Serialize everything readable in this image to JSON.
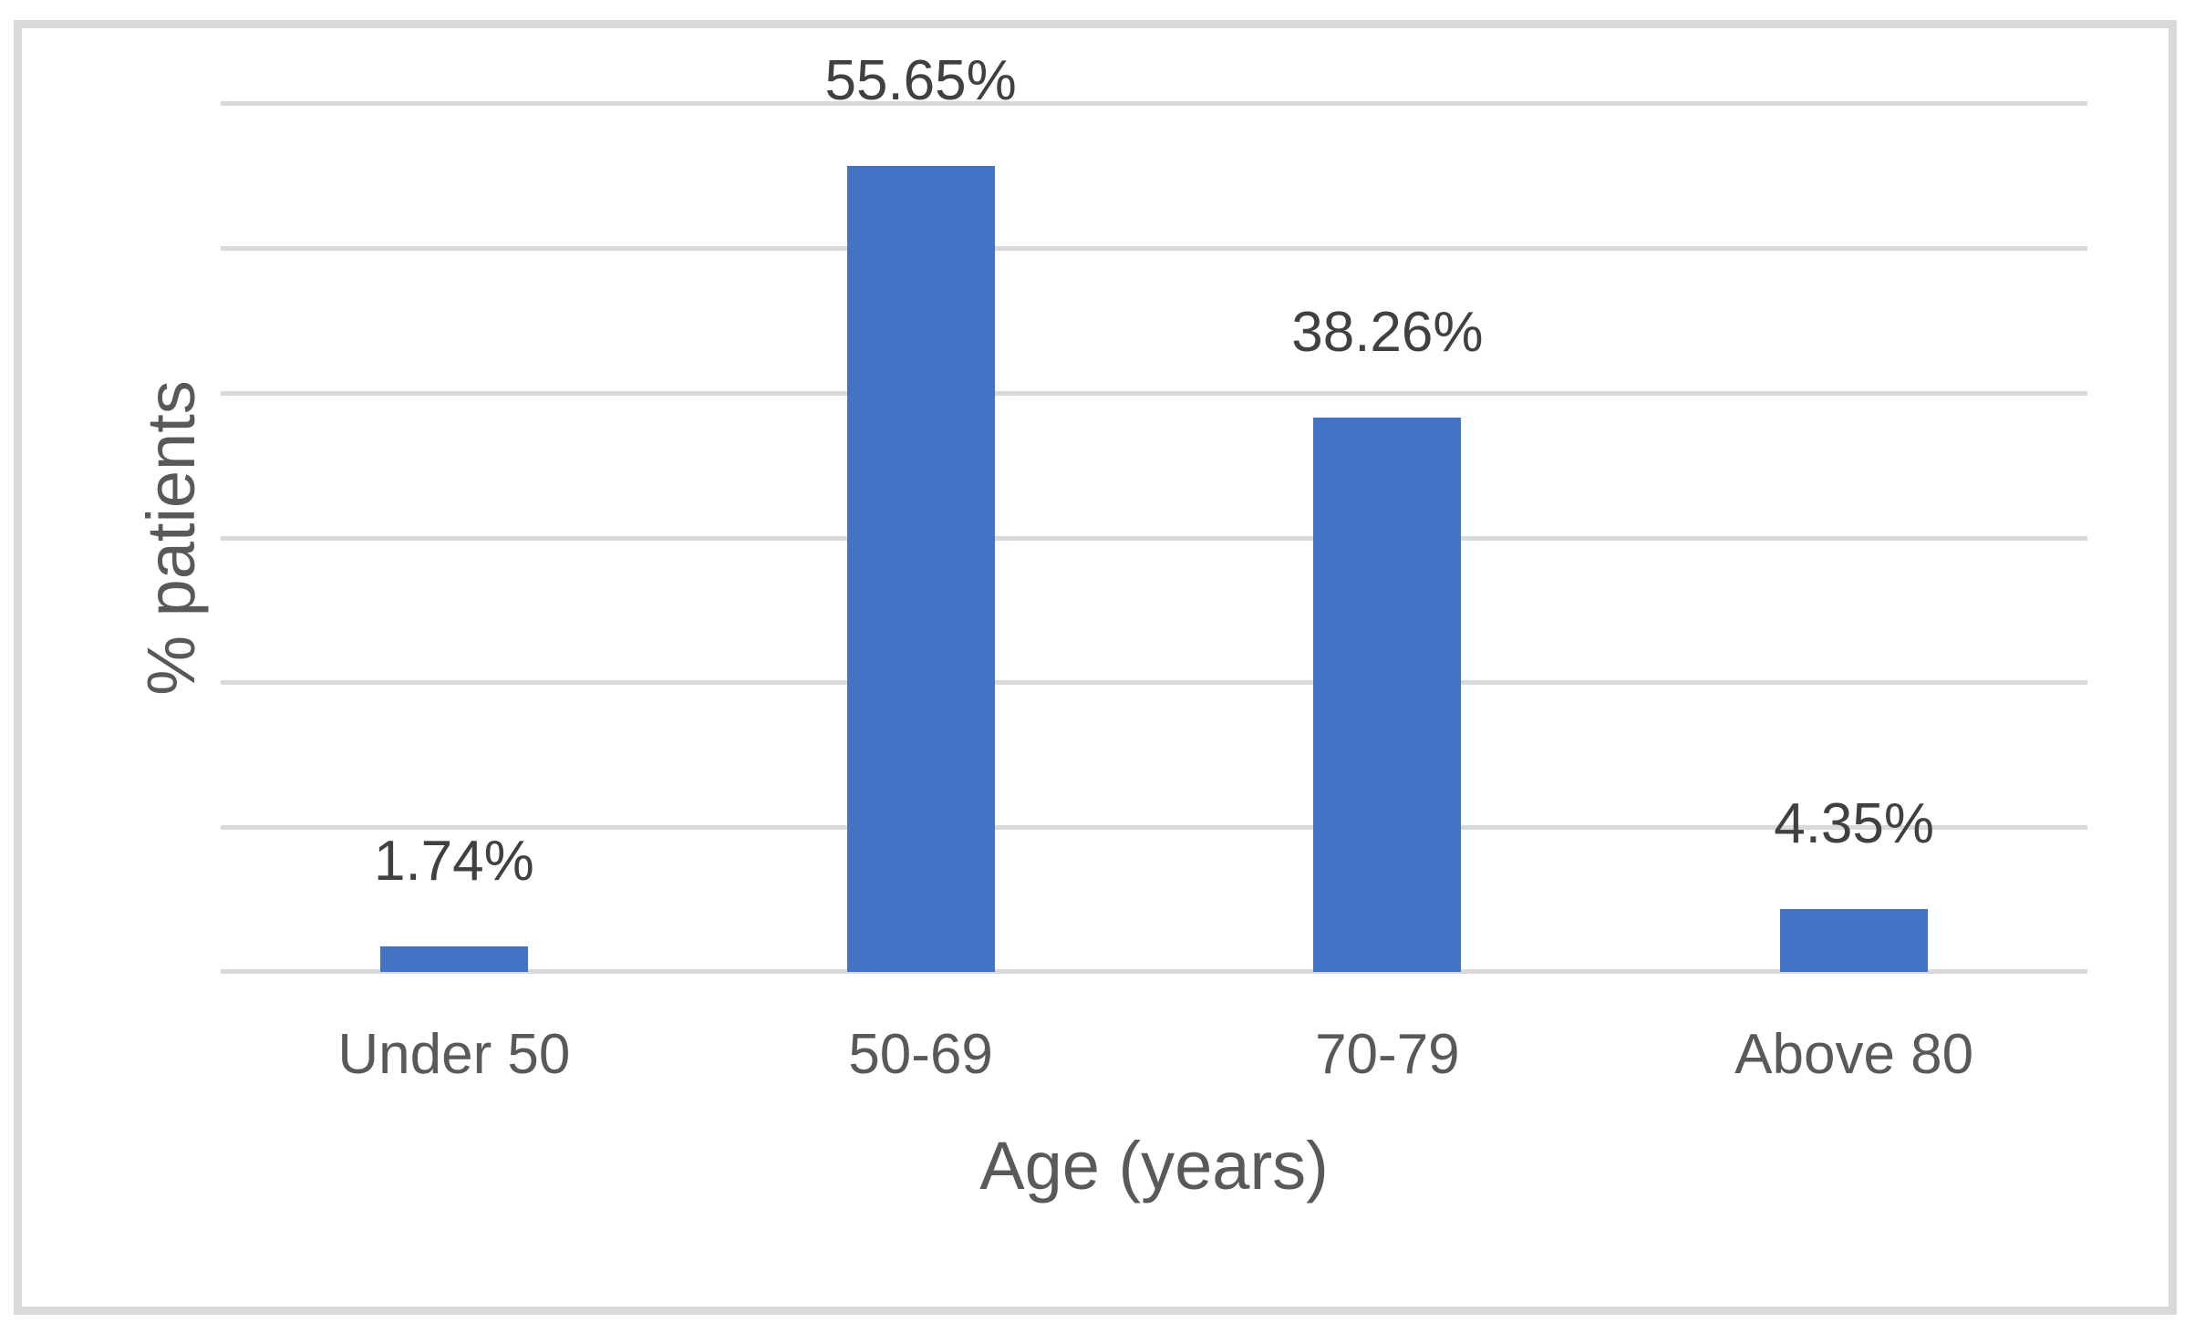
{
  "chart_data": {
    "type": "bar",
    "title": "",
    "categories": [
      "Under 50",
      "50-69",
      "70-79",
      "Above 80"
    ],
    "values": [
      1.74,
      55.65,
      38.26,
      4.35
    ],
    "value_labels": [
      "1.74%",
      "55.65%",
      "38.26%",
      "4.35%"
    ],
    "xlabel": "Age (years)",
    "ylabel": "% patients",
    "ylim": [
      0,
      60
    ],
    "grid_step": 10,
    "grid": true,
    "legend": false,
    "colors": {
      "bar": "#4472C4",
      "gridline": "#D9D9D9",
      "frame_border": "#D9D9D9",
      "data_label": "#404040",
      "axis_text": "#595959",
      "background": "#FFFFFF"
    }
  }
}
